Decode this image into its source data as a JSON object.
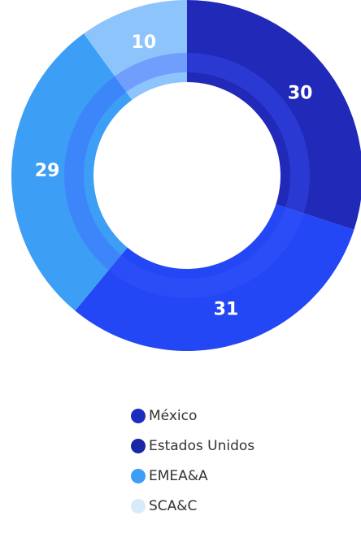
{
  "chart_data": {
    "type": "pie",
    "categories": [
      "México",
      "Estados Unidos",
      "EMEA&A",
      "SCA&C"
    ],
    "values": [
      30,
      31,
      29,
      10
    ],
    "colors": [
      "#2129b9",
      "#2347f4",
      "#3d9ef6",
      "#8cc4fb"
    ],
    "legend_colors": [
      "#1e2bbf",
      "#1a27a6",
      "#3d9ef6",
      "#d8ebfb"
    ],
    "donut": true
  }
}
